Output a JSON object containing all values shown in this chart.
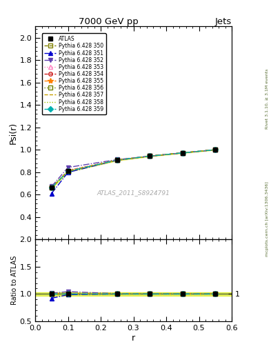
{
  "title": "7000 GeV pp",
  "title_right": "Jets",
  "ylabel_main": "Psi(r)",
  "ylabel_ratio": "Ratio to ATLAS",
  "xlabel": "r",
  "watermark": "ATLAS_2011_S8924791",
  "right_label": "mcplots.cern.ch [arXiv:1306.3436]",
  "right_label2": "Rivet 3.1.10, ≥ 3.1M events",
  "xlim": [
    0.0,
    0.6
  ],
  "main_ylim": [
    0.2,
    2.1
  ],
  "ratio_ylim": [
    0.5,
    2.0
  ],
  "main_yticks": [
    0.4,
    0.6,
    0.8,
    1.0,
    1.2,
    1.4,
    1.6,
    1.8,
    2.0
  ],
  "ratio_yticks": [
    0.5,
    1.0,
    1.5,
    2.0
  ],
  "xticks": [
    0.0,
    0.1,
    0.2,
    0.3,
    0.4,
    0.5,
    0.6
  ],
  "x_data": [
    0.05,
    0.1,
    0.25,
    0.35,
    0.45,
    0.55
  ],
  "atlas_y": [
    0.663,
    0.808,
    0.907,
    0.943,
    0.972,
    1.0
  ],
  "atlas_yerr": [
    0.01,
    0.006,
    0.004,
    0.003,
    0.002,
    0.001
  ],
  "series": [
    {
      "label": "Pythia 6.428 350",
      "color": "#808000",
      "linestyle": "--",
      "marker": "s",
      "markerfill": "none",
      "y": [
        0.66,
        0.805,
        0.907,
        0.943,
        0.972,
        1.0
      ]
    },
    {
      "label": "Pythia 6.428 351",
      "color": "#0000cc",
      "linestyle": "-.",
      "marker": "^",
      "markerfill": "full",
      "y": [
        0.61,
        0.798,
        0.907,
        0.943,
        0.972,
        1.0
      ]
    },
    {
      "label": "Pythia 6.428 352",
      "color": "#6040b0",
      "linestyle": "-.",
      "marker": "v",
      "markerfill": "full",
      "y": [
        0.672,
        0.842,
        0.912,
        0.943,
        0.972,
        1.0
      ]
    },
    {
      "label": "Pythia 6.428 353",
      "color": "#ff80c0",
      "linestyle": ":",
      "marker": "^",
      "markerfill": "none",
      "y": [
        0.662,
        0.818,
        0.907,
        0.943,
        0.972,
        1.0
      ]
    },
    {
      "label": "Pythia 6.428 354",
      "color": "#cc2020",
      "linestyle": "--",
      "marker": "o",
      "markerfill": "none",
      "y": [
        0.662,
        0.812,
        0.907,
        0.943,
        0.972,
        1.0
      ]
    },
    {
      "label": "Pythia 6.428 355",
      "color": "#ff8000",
      "linestyle": "--",
      "marker": "*",
      "markerfill": "full",
      "y": [
        0.662,
        0.812,
        0.907,
        0.943,
        0.972,
        1.0
      ]
    },
    {
      "label": "Pythia 6.428 356",
      "color": "#708000",
      "linestyle": ":",
      "marker": "s",
      "markerfill": "none",
      "y": [
        0.662,
        0.808,
        0.907,
        0.943,
        0.972,
        1.0
      ]
    },
    {
      "label": "Pythia 6.428 357",
      "color": "#c8a000",
      "linestyle": "--",
      "marker": "None",
      "markerfill": "none",
      "y": [
        0.662,
        0.808,
        0.907,
        0.943,
        0.972,
        1.0
      ]
    },
    {
      "label": "Pythia 6.428 358",
      "color": "#a0c800",
      "linestyle": ":",
      "marker": "None",
      "markerfill": "none",
      "y": [
        0.662,
        0.808,
        0.907,
        0.943,
        0.972,
        1.0
      ]
    },
    {
      "label": "Pythia 6.428 359",
      "color": "#00b0b0",
      "linestyle": "-.",
      "marker": "D",
      "markerfill": "full",
      "y": [
        0.662,
        0.808,
        0.907,
        0.943,
        0.972,
        1.0
      ]
    }
  ],
  "ratio_series": [
    {
      "y": [
        0.996,
        0.996,
        1.0,
        1.0,
        1.0,
        1.0
      ]
    },
    {
      "y": [
        0.921,
        0.987,
        1.0,
        1.0,
        1.0,
        1.0
      ]
    },
    {
      "y": [
        1.014,
        1.042,
        1.006,
        1.0,
        1.0,
        1.0
      ]
    },
    {
      "y": [
        0.998,
        1.012,
        1.0,
        1.0,
        1.0,
        1.0
      ]
    },
    {
      "y": [
        0.998,
        1.005,
        1.0,
        1.0,
        1.0,
        1.0
      ]
    },
    {
      "y": [
        0.998,
        1.005,
        1.0,
        1.0,
        1.0,
        1.0
      ]
    },
    {
      "y": [
        0.998,
        1.0,
        1.0,
        1.0,
        1.0,
        1.0
      ]
    },
    {
      "y": [
        0.998,
        1.0,
        1.0,
        1.0,
        1.0,
        1.0
      ]
    },
    {
      "y": [
        0.998,
        1.0,
        1.0,
        1.0,
        1.0,
        1.0
      ]
    },
    {
      "y": [
        0.998,
        1.0,
        1.0,
        1.0,
        1.0,
        1.0
      ]
    }
  ]
}
